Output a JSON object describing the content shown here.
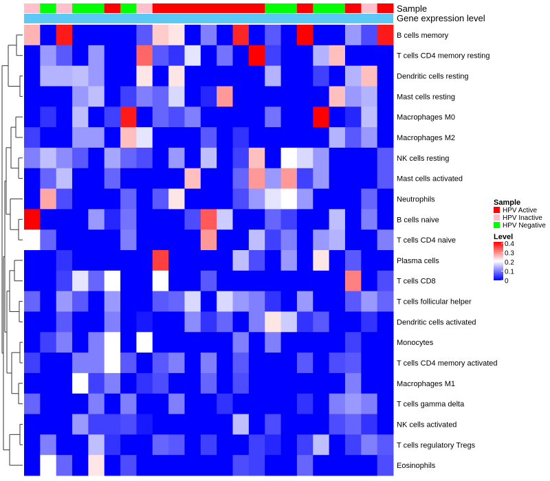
{
  "chart_data": {
    "type": "heatmap",
    "title": "",
    "annotation_labels": {
      "sample": "Sample",
      "expression": "Gene expression level"
    },
    "sample_annotation": [
      "HPV Inactive",
      "HPV Negative",
      "HPV Inactive",
      "HPV Negative",
      "HPV Negative",
      "HPV Active",
      "HPV Negative",
      "HPV Inactive",
      "HPV Active",
      "HPV Active",
      "HPV Active",
      "HPV Active",
      "HPV Active",
      "HPV Active",
      "HPV Active",
      "HPV Negative",
      "HPV Negative",
      "HPV Active",
      "HPV Negative",
      "HPV Negative",
      "HPV Active",
      "HPV Inactive",
      "HPV Active"
    ],
    "rows": [
      "B cells memory",
      "T cells CD4 memory resting",
      "Dendritic cells resting",
      "Mast cells resting",
      "Macrophages M0",
      "Macrophages M2",
      "NK cells resting",
      "Mast cells activated",
      "Neutrophils",
      "B cells naive",
      "T cells CD4 naive",
      "Plasma cells",
      "T cells CD8",
      "T cells follicular helper",
      "Dendritic cells activated",
      "Monocytes",
      "T cells CD4 memory activated",
      "Macrophages M1",
      "T cells gamma delta",
      "NK cells activated",
      "T cells regulatory  Tregs",
      "Eosinophils"
    ],
    "values": [
      [
        0.26,
        0,
        0.38,
        0,
        0,
        0,
        0,
        0.07,
        0.24,
        0.22,
        0,
        0.1,
        0,
        0.37,
        0,
        0.07,
        0,
        0.4,
        0,
        0,
        0.12,
        0.06,
        0.38
      ],
      [
        0,
        0.12,
        0.07,
        0,
        0.12,
        0,
        0,
        0.32,
        0.07,
        0.04,
        0.18,
        0,
        0.09,
        0,
        0.4,
        0.05,
        0,
        0,
        0.14,
        0.25,
        0,
        0,
        0
      ],
      [
        0,
        0.14,
        0.14,
        0.15,
        0.12,
        0,
        0,
        0.22,
        0,
        0.22,
        0,
        0,
        0,
        0,
        0,
        0.14,
        0,
        0,
        0.05,
        0,
        0.14,
        0.25,
        0
      ],
      [
        0,
        0,
        0,
        0.12,
        0.15,
        0,
        0.05,
        0.1,
        0.08,
        0.17,
        0,
        0.03,
        0.28,
        0,
        0,
        0,
        0,
        0,
        0,
        0.25,
        0.12,
        0.14,
        0
      ],
      [
        0,
        0.04,
        0,
        0.15,
        0,
        0.05,
        0.38,
        0,
        0.08,
        0.06,
        0.1,
        0,
        0,
        0,
        0,
        0.09,
        0,
        0,
        0.4,
        0,
        0.03,
        0.15,
        0
      ],
      [
        0.05,
        0,
        0,
        0.12,
        0.12,
        0,
        0.25,
        0.18,
        0,
        0,
        0,
        0.07,
        0,
        0.04,
        0,
        0,
        0,
        0,
        0,
        0.14,
        0.07,
        0.12,
        0
      ],
      [
        0.1,
        0.15,
        0.11,
        0.07,
        0,
        0.13,
        0.08,
        0.06,
        0,
        0.12,
        0,
        0.15,
        0,
        0.05,
        0.25,
        0,
        0.2,
        0.17,
        0.12,
        0,
        0,
        0,
        0.07
      ],
      [
        0,
        0.08,
        0.15,
        0,
        0,
        0.08,
        0,
        0,
        0,
        0,
        0.25,
        0,
        0,
        0.08,
        0.28,
        0.12,
        0.28,
        0.05,
        0.12,
        0,
        0,
        0,
        0.07
      ],
      [
        0,
        0.27,
        0.06,
        0,
        0,
        0,
        0.08,
        0,
        0.07,
        0.22,
        0,
        0,
        0,
        0.06,
        0.12,
        0.18,
        0.2,
        0.12,
        0,
        0,
        0,
        0.08,
        0
      ],
      [
        0.4,
        0,
        0,
        0,
        0.12,
        0.03,
        0.09,
        0,
        0,
        0,
        0.06,
        0.33,
        0.16,
        0,
        0,
        0.08,
        0.05,
        0,
        0,
        0.15,
        0,
        0.1,
        0
      ],
      [
        0.2,
        0.08,
        0,
        0,
        0,
        0,
        0.1,
        0,
        0,
        0,
        0,
        0.28,
        0,
        0,
        0.15,
        0.05,
        0.1,
        0,
        0.12,
        0.14,
        0,
        0,
        0.1
      ],
      [
        0,
        0,
        0.04,
        0,
        0,
        0,
        0,
        0,
        0.35,
        0,
        0,
        0,
        0,
        0.15,
        0.06,
        0,
        0.12,
        0,
        0.22,
        0,
        0.07,
        0,
        0
      ],
      [
        0,
        0,
        0.05,
        0.18,
        0.08,
        0.2,
        0,
        0,
        0.2,
        0,
        0,
        0.07,
        0,
        0,
        0,
        0,
        0,
        0,
        0,
        0,
        0.3,
        0,
        0.06
      ],
      [
        0.08,
        0,
        0.12,
        0.07,
        0,
        0.12,
        0,
        0,
        0.07,
        0.08,
        0.17,
        0,
        0.17,
        0.12,
        0.1,
        0.04,
        0,
        0.12,
        0,
        0,
        0.07,
        0.12,
        0.08
      ],
      [
        0,
        0,
        0.07,
        0,
        0,
        0.1,
        0,
        0.02,
        0,
        0,
        0.11,
        0.04,
        0.08,
        0,
        0.1,
        0.22,
        0.16,
        0.04,
        0.07,
        0,
        0,
        0.04,
        0
      ],
      [
        0,
        0.05,
        0.1,
        0,
        0.1,
        0.2,
        0,
        0.2,
        0,
        0,
        0,
        0,
        0,
        0.1,
        0,
        0.1,
        0,
        0,
        0,
        0,
        0.05,
        0,
        0
      ],
      [
        0.05,
        0,
        0,
        0.1,
        0.1,
        0.2,
        0.07,
        0,
        0.07,
        0.1,
        0,
        0.1,
        0,
        0.07,
        0,
        0,
        0,
        0.07,
        0,
        0.06,
        0.07,
        0,
        0
      ],
      [
        0,
        0,
        0,
        0.2,
        0.05,
        0.1,
        0,
        0.04,
        0.06,
        0,
        0,
        0.08,
        0,
        0.06,
        0,
        0,
        0,
        0,
        0,
        0,
        0.1,
        0,
        0
      ],
      [
        0.08,
        0,
        0,
        0,
        0.1,
        0,
        0.1,
        0,
        0,
        0.1,
        0,
        0,
        0.04,
        0,
        0,
        0,
        0,
        0.04,
        0,
        0.1,
        0.12,
        0.1,
        0
      ],
      [
        0,
        0,
        0,
        0.12,
        0.05,
        0.05,
        0.06,
        0.02,
        0,
        0,
        0,
        0,
        0,
        0.15,
        0,
        0.06,
        0,
        0,
        0,
        0.06,
        0.08,
        0.04,
        0
      ],
      [
        0,
        0.1,
        0,
        0,
        0.15,
        0.04,
        0,
        0,
        0.08,
        0.07,
        0,
        0.05,
        0,
        0,
        0.05,
        0.03,
        0,
        0.05,
        0.15,
        0,
        0.05,
        0.1,
        0.07
      ],
      [
        0,
        0.2,
        0.08,
        0,
        0.22,
        0,
        0.06,
        0,
        0,
        0,
        0,
        0,
        0,
        0.06,
        0.05,
        0,
        0,
        0.08,
        0,
        0,
        0,
        0,
        0.06
      ]
    ],
    "color_scale": {
      "min": 0,
      "mid": 0.2,
      "max": 0.4,
      "low": "#0000ff",
      "midcolor": "#ffffff",
      "high": "#ff0000"
    },
    "expression_annotation_color": "#5cc8f5",
    "legend": {
      "sample_title": "Sample",
      "sample_items": [
        {
          "label": "HPV Active",
          "color": "#ff0000"
        },
        {
          "label": "HPV Inactive",
          "color": "#ffc0cb"
        },
        {
          "label": "HPV Negative",
          "color": "#00ff00"
        }
      ],
      "level_title": "Level",
      "level_ticks": [
        "0.4",
        "0.3",
        "0.2",
        "0.1",
        "0"
      ],
      "placement": "right"
    },
    "row_dendrogram": true
  }
}
